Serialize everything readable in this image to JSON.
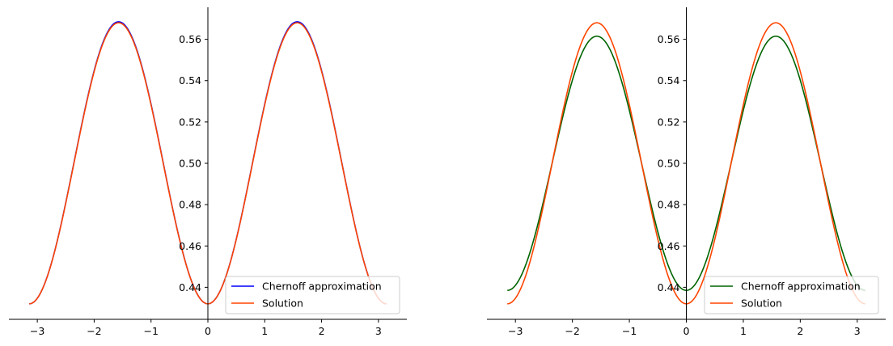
{
  "chart_data": [
    {
      "type": "line",
      "title": "",
      "xlabel": "",
      "ylabel": "",
      "xlim": [
        -3.5,
        3.5
      ],
      "ylim": [
        0.4245,
        0.5755
      ],
      "xticks": [
        -3,
        -2,
        -1,
        0,
        1,
        2,
        3
      ],
      "xtick_labels": [
        "−3",
        "−2",
        "−1",
        "0",
        "1",
        "2",
        "3"
      ],
      "yticks": [
        0.44,
        0.46,
        0.48,
        0.5,
        0.52,
        0.54,
        0.56
      ],
      "ytick_labels": [
        "0.44",
        "0.46",
        "0.48",
        "0.50",
        "0.52",
        "0.54",
        "0.56"
      ],
      "spines": "centered",
      "grid": false,
      "legend_position": "lower-right",
      "series": [
        {
          "name": "Chernoff approximation",
          "color": "#0000ff",
          "x_range": [
            -3.14159,
            3.14159
          ],
          "mean": 0.50025,
          "amplitude": 0.06825,
          "formula": "mean + amplitude * sin(x)^2 shape"
        },
        {
          "name": "Solution",
          "color": "#ff4500",
          "x_range": [
            -3.14159,
            3.14159
          ],
          "mean": 0.5,
          "amplitude": 0.068
        }
      ]
    },
    {
      "type": "line",
      "title": "",
      "xlabel": "",
      "ylabel": "",
      "xlim": [
        -3.5,
        3.5
      ],
      "ylim": [
        0.4245,
        0.5755
      ],
      "xticks": [
        -3,
        -2,
        -1,
        0,
        1,
        2,
        3
      ],
      "xtick_labels": [
        "−3",
        "−2",
        "−1",
        "0",
        "1",
        "2",
        "3"
      ],
      "yticks": [
        0.44,
        0.46,
        0.48,
        0.5,
        0.52,
        0.54,
        0.56
      ],
      "ytick_labels": [
        "0.44",
        "0.46",
        "0.48",
        "0.50",
        "0.52",
        "0.54",
        "0.56"
      ],
      "spines": "centered",
      "grid": false,
      "legend_position": "lower-right",
      "series": [
        {
          "name": "Chernoff approximation",
          "color": "#006400",
          "x_range": [
            -3.14159,
            3.14159
          ],
          "mean": 0.5,
          "amplitude": 0.0615
        },
        {
          "name": "Solution",
          "color": "#ff4500",
          "x_range": [
            -3.14159,
            3.14159
          ],
          "mean": 0.5,
          "amplitude": 0.068
        }
      ]
    }
  ]
}
